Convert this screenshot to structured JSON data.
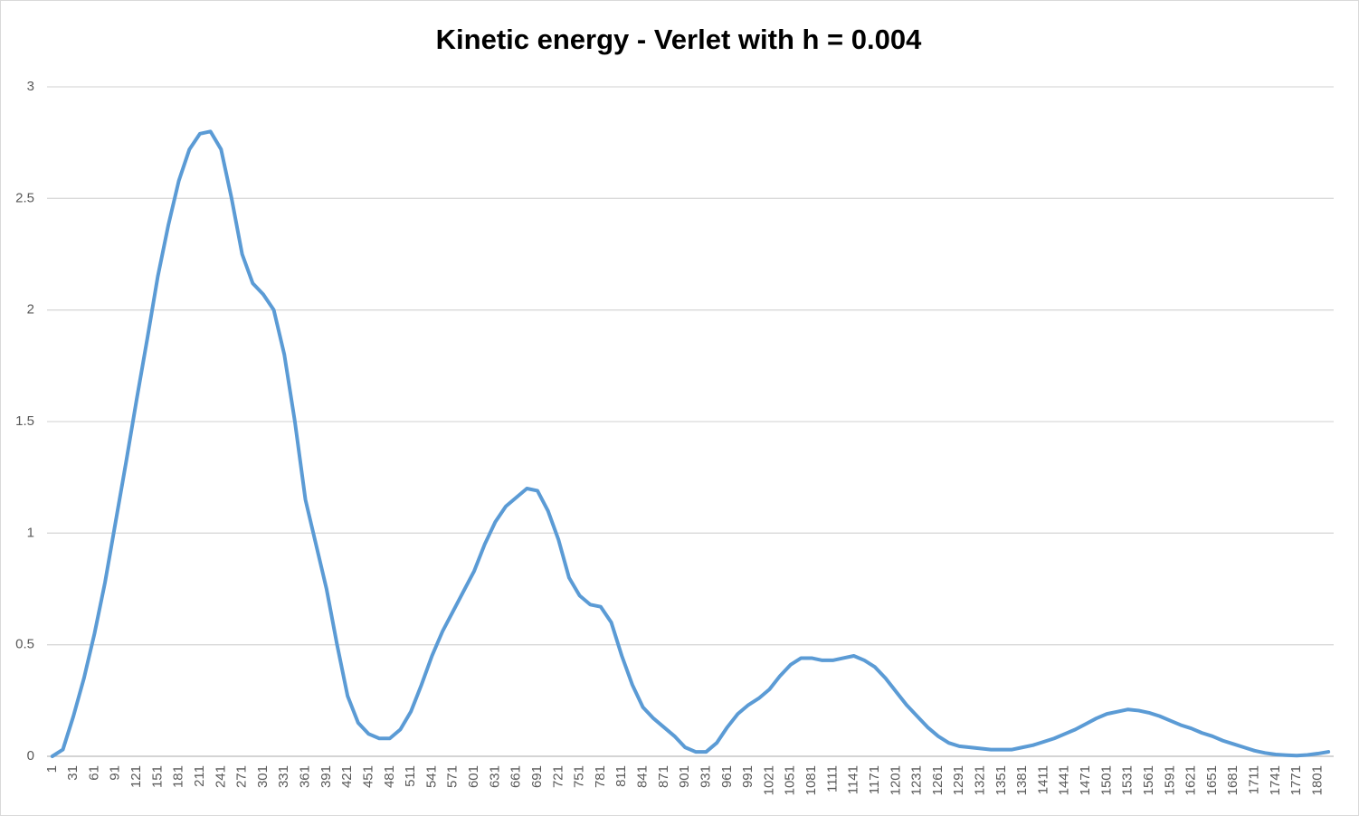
{
  "chart_data": {
    "type": "line",
    "title": "Kinetic energy - Verlet with h = 0.004",
    "categories": [
      1,
      null,
      31,
      null,
      61,
      null,
      91,
      null,
      121,
      null,
      151,
      null,
      181,
      null,
      211,
      null,
      241,
      null,
      271,
      null,
      301,
      null,
      331,
      null,
      361,
      null,
      391,
      null,
      421,
      null,
      451,
      null,
      481,
      null,
      511,
      null,
      541,
      null,
      571,
      null,
      601,
      null,
      631,
      null,
      661,
      null,
      691,
      null,
      721,
      null,
      751,
      null,
      781,
      null,
      811,
      null,
      841,
      null,
      871,
      null,
      901,
      null,
      931,
      null,
      961,
      null,
      991,
      null,
      1021,
      null,
      1051,
      null,
      1081,
      null,
      1111,
      null,
      1141,
      null,
      1171,
      null,
      1201,
      null,
      1231,
      null,
      1261,
      null,
      1291,
      null,
      1321,
      null,
      1351,
      null,
      1381,
      null,
      1411,
      null,
      1441,
      null,
      1471,
      null,
      1501,
      null,
      1531,
      null,
      1561,
      null,
      1591,
      null,
      1621,
      null,
      1651,
      null,
      1681,
      null,
      1711,
      null,
      1741,
      null,
      1771,
      null,
      1801,
      null
    ],
    "values": [
      0,
      0.03,
      0.18,
      0.35,
      0.55,
      0.78,
      1.05,
      1.32,
      1.6,
      1.87,
      2.15,
      2.38,
      2.58,
      2.72,
      2.79,
      2.8,
      2.72,
      2.5,
      2.25,
      2.12,
      2.07,
      2.0,
      1.8,
      1.5,
      1.15,
      0.95,
      0.75,
      0.5,
      0.27,
      0.15,
      0.1,
      0.08,
      0.08,
      0.12,
      0.2,
      0.32,
      0.45,
      0.56,
      0.65,
      0.74,
      0.83,
      0.95,
      1.05,
      1.12,
      1.16,
      1.2,
      1.19,
      1.1,
      0.97,
      0.8,
      0.72,
      0.68,
      0.67,
      0.6,
      0.45,
      0.32,
      0.22,
      0.17,
      0.13,
      0.09,
      0.04,
      0.02,
      0.02,
      0.06,
      0.13,
      0.19,
      0.23,
      0.26,
      0.3,
      0.36,
      0.41,
      0.44,
      0.44,
      0.43,
      0.43,
      0.44,
      0.45,
      0.43,
      0.4,
      0.35,
      0.29,
      0.23,
      0.18,
      0.13,
      0.09,
      0.06,
      0.045,
      0.04,
      0.035,
      0.03,
      0.03,
      0.03,
      0.04,
      0.05,
      0.065,
      0.08,
      0.1,
      0.12,
      0.145,
      0.17,
      0.19,
      0.2,
      0.21,
      0.205,
      0.195,
      0.18,
      0.16,
      0.14,
      0.125,
      0.105,
      0.09,
      0.07,
      0.055,
      0.04,
      0.025,
      0.015,
      0.008,
      0.005,
      0.003,
      0.006,
      0.012,
      0.02
    ],
    "color": "#5b9bd5",
    "ylim": [
      0,
      3
    ],
    "yticks": [
      0,
      0.5,
      1,
      1.5,
      2,
      2.5,
      3
    ],
    "grid": true
  }
}
